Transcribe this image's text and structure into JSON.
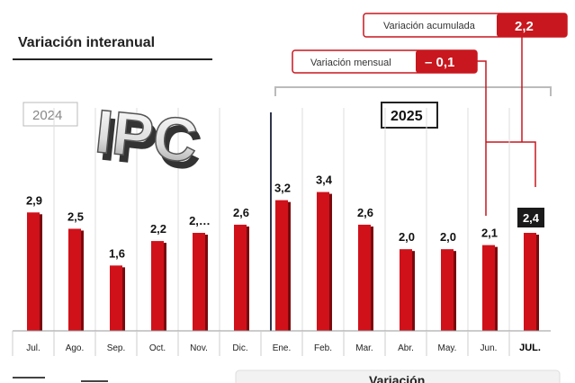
{
  "title": "Variación interanual",
  "logo_text": "IPC",
  "years": {
    "left": "2024",
    "right": "2025"
  },
  "callouts": {
    "accumulated": {
      "label": "Variación acumulada",
      "value": "2,2"
    },
    "monthly": {
      "label": "Variación mensual",
      "value": "– 0,1"
    }
  },
  "bottom_partial_text": "Variación",
  "colors": {
    "bar": "#d0111a",
    "bar_shadow": "#7a0a0e",
    "accent": "#c8171e",
    "grid": "#dddddd"
  },
  "chart_data": {
    "type": "bar",
    "categories": [
      "Jul.",
      "Ago.",
      "Sep.",
      "Oct.",
      "Nov.",
      "Dic.",
      "Ene.",
      "Feb.",
      "Mar.",
      "Abr.",
      "May.",
      "Jun.",
      "JUL."
    ],
    "values": [
      2.9,
      2.5,
      1.6,
      2.2,
      2.4,
      2.6,
      3.2,
      3.4,
      2.6,
      2.0,
      2.0,
      2.1,
      2.4
    ],
    "labels": [
      "2,9",
      "2,5",
      "1,6",
      "2,2",
      "2,…",
      "2,6",
      "3,2",
      "3,4",
      "2,6",
      "2,0",
      "2,0",
      "2,1",
      "2,4"
    ],
    "highlighted_index": 12,
    "title": "Variación interanual",
    "ylim": [
      0,
      4.8
    ],
    "grid": "vertical",
    "legend": "none"
  }
}
